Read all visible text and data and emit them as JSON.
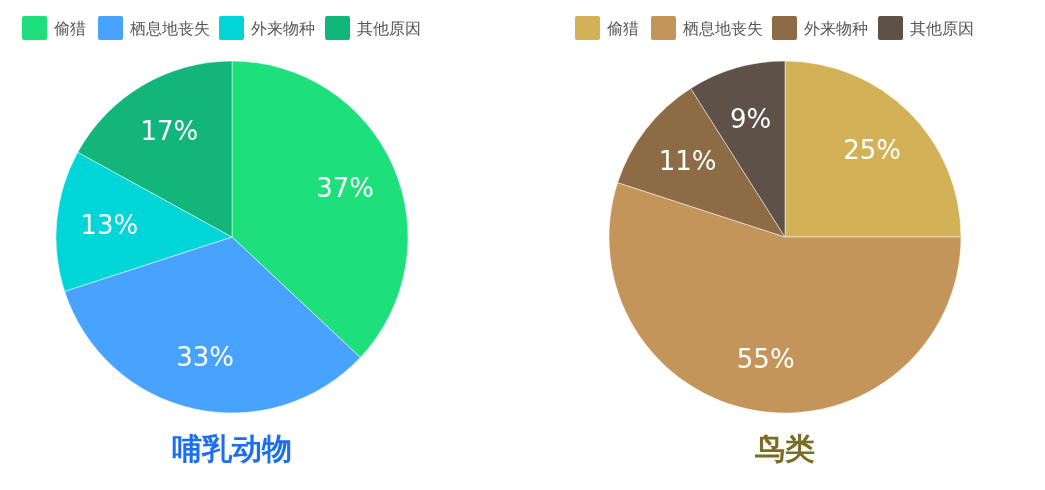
{
  "chart_data": [
    {
      "type": "pie",
      "title": "哺乳动物",
      "categories": [
        "偷猎",
        "栖息地丧失",
        "外来物种",
        "其他原因"
      ],
      "values": [
        37,
        33,
        13,
        17
      ],
      "value_labels": [
        "37%",
        "33%",
        "13%",
        "17%"
      ],
      "colors": [
        "#1ddf7c",
        "#47a3ff",
        "#00d5d8",
        "#13b67a"
      ],
      "legend": "top"
    },
    {
      "type": "pie",
      "title": "鸟类",
      "categories": [
        "偷猎",
        "栖息地丧失",
        "外来物种",
        "其他原因"
      ],
      "values": [
        25,
        55,
        11,
        9
      ],
      "value_labels": [
        "25%",
        "55%",
        "11%",
        "9%"
      ],
      "colors": [
        "#d3b257",
        "#c4955a",
        "#8d6c45",
        "#5e5248"
      ],
      "legend": "top"
    }
  ]
}
